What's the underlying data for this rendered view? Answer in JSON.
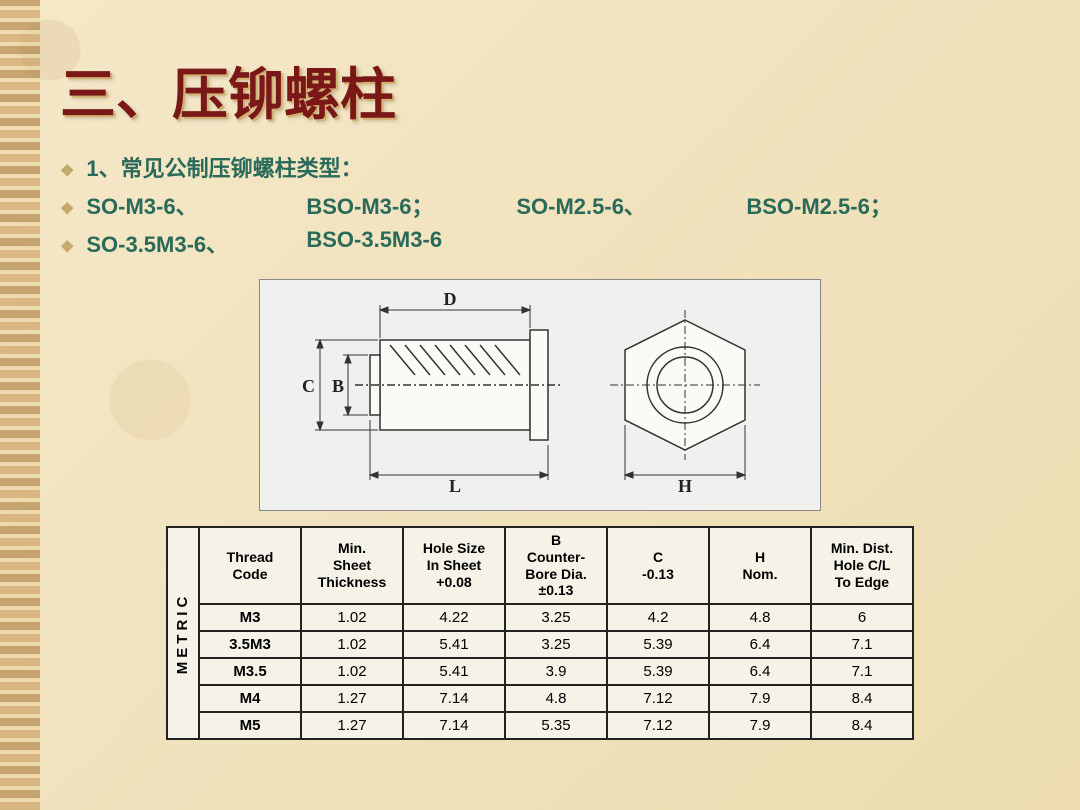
{
  "title": "三、压铆螺柱",
  "subtitle": "1、常见公制压铆螺柱类型：",
  "types_row1": {
    "a": "SO-M3-6、",
    "b": "BSO-M3-6；",
    "c": "SO-M2.5-6、",
    "d": "BSO-M2.5-6；"
  },
  "types_row2": {
    "a": "SO-3.5M3-6、",
    "b": "BSO-3.5M3-6"
  },
  "diagram": {
    "labels": {
      "C": "C",
      "B": "B",
      "D": "D",
      "L": "L",
      "H": "H"
    }
  },
  "table": {
    "side_label": "METRIC",
    "columns": [
      "Thread\nCode",
      "Min.\nSheet\nThickness",
      "Hole Size\nIn Sheet\n+0.08",
      "B\nCounter-\nBore Dia.\n±0.13",
      "C\n-0.13",
      "H\nNom.",
      "Min. Dist.\nHole C/L\nTo Edge"
    ],
    "rows": [
      [
        "M3",
        "1.02",
        "4.22",
        "3.25",
        "4.2",
        "4.8",
        "6"
      ],
      [
        "3.5M3",
        "1.02",
        "5.41",
        "3.25",
        "5.39",
        "6.4",
        "7.1"
      ],
      [
        "M3.5",
        "1.02",
        "5.41",
        "3.9",
        "5.39",
        "6.4",
        "7.1"
      ],
      [
        "M4",
        "1.27",
        "7.14",
        "4.8",
        "7.12",
        "7.9",
        "8.4"
      ],
      [
        "M5",
        "1.27",
        "7.14",
        "5.35",
        "7.12",
        "7.9",
        "8.4"
      ]
    ]
  },
  "colors": {
    "title": "#7a1818",
    "text": "#2a6a5a",
    "bullet": "#c4a868",
    "background": "#f5e8c8",
    "table_bg": "#f5f2e8",
    "border": "#222222"
  }
}
